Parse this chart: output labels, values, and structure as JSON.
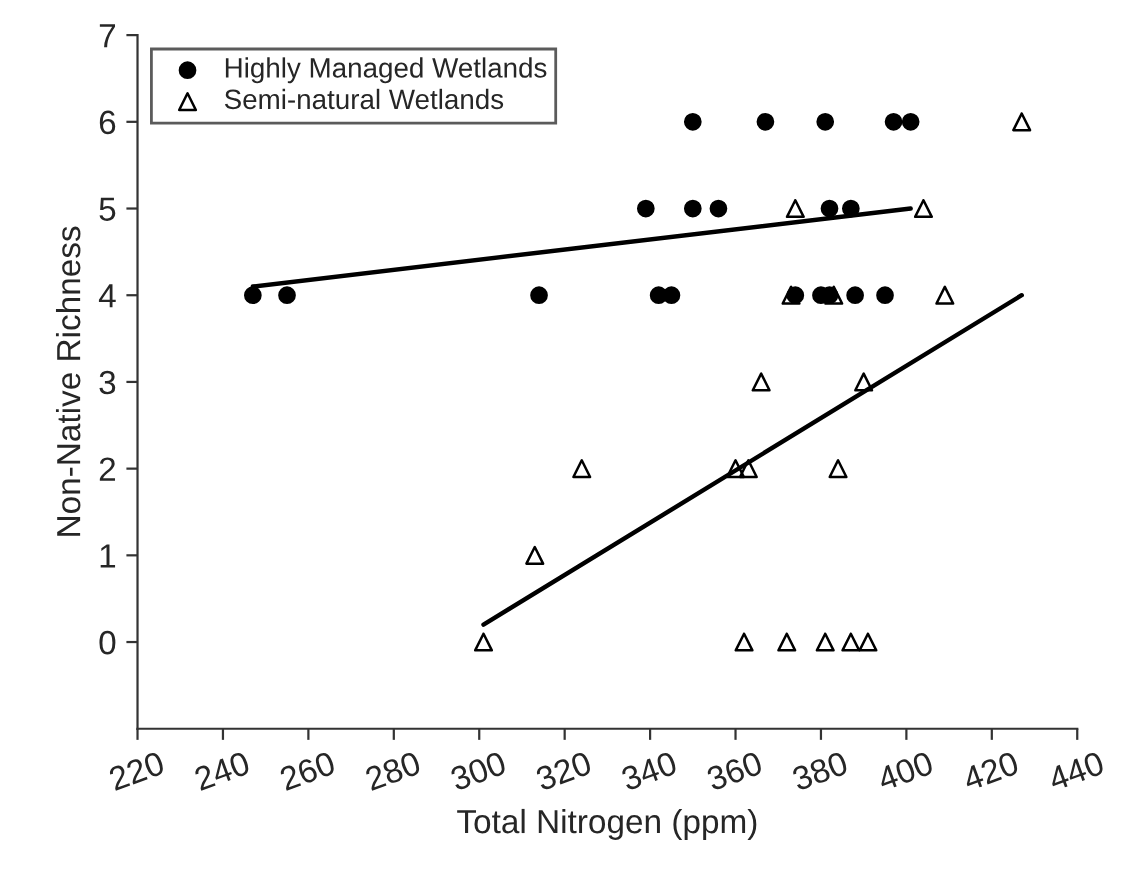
{
  "chart_data": {
    "type": "scatter",
    "xlabel": "Total Nitrogen (ppm)",
    "ylabel": "Non-Native Richness",
    "xlim": [
      220,
      440
    ],
    "xticks": [
      220,
      240,
      260,
      280,
      300,
      320,
      340,
      360,
      380,
      400,
      420,
      440
    ],
    "ylim": [
      -1,
      7
    ],
    "yticks": [
      0,
      1,
      2,
      3,
      4,
      5,
      6,
      7
    ],
    "grid": false,
    "legend": "top left",
    "series": [
      {
        "name": "Highly Managed Wetlands",
        "marker": "circle",
        "color": "#000000",
        "x": [
          247,
          255,
          314,
          342,
          345,
          374,
          380,
          382,
          388,
          395,
          339,
          350,
          356,
          382,
          387,
          350,
          367,
          381,
          397,
          401
        ],
        "values": [
          4,
          4,
          4,
          4,
          4,
          4,
          4,
          4,
          4,
          4,
          5,
          5,
          5,
          5,
          5,
          6,
          6,
          6,
          6,
          6
        ]
      },
      {
        "name": "Semi-natural Wetlands",
        "marker": "triangle",
        "color": "#000000",
        "x": [
          427,
          374,
          404,
          373,
          383,
          409,
          366,
          390,
          324,
          360,
          363,
          384,
          313,
          301,
          362,
          372,
          381,
          387,
          391
        ],
        "values": [
          6,
          5,
          5,
          4,
          4,
          4,
          3,
          3,
          2,
          2,
          2,
          2,
          1,
          0,
          0,
          0,
          0,
          0,
          0
        ]
      },
      {
        "type": "line",
        "marker": "none",
        "line_style": "solid",
        "color": "#000000",
        "x": [
          247,
          401
        ],
        "values": [
          4.1,
          5.0
        ]
      },
      {
        "type": "line",
        "marker": "none",
        "line_style": "solid",
        "color": "#000000",
        "x": [
          301,
          427
        ],
        "values": [
          0.2,
          4.0
        ]
      }
    ]
  }
}
